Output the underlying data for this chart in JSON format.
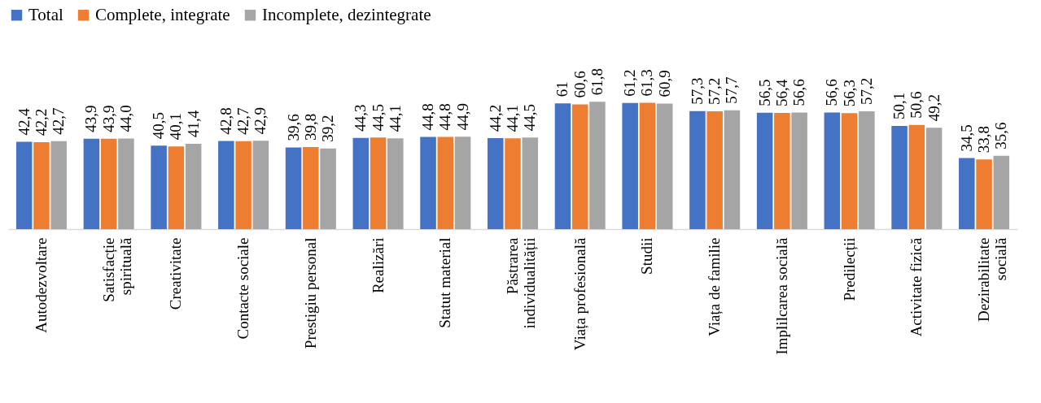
{
  "chart_data": {
    "type": "bar",
    "categories": [
      "Autodezvoltare",
      "Satisfacție\nspirituală",
      "Creativitate",
      "Contacte sociale",
      "Prestigiu personal",
      "Realizări",
      "Statut material",
      "Păstrarea\nindividualității",
      "Viața profesională",
      "Studii",
      "Viața de familie",
      "Implilcarea socială",
      "Predilecții",
      "Activitate fizică",
      "Dezirabilitate\nsocială"
    ],
    "series": [
      {
        "name": "Total",
        "color": "#4472c4",
        "values": [
          42.4,
          43.9,
          40.5,
          42.8,
          39.6,
          44.3,
          44.8,
          44.2,
          61,
          61.2,
          57.3,
          56.5,
          56.6,
          50.1,
          34.5
        ],
        "value_labels": [
          "42,4",
          "43,9",
          "40,5",
          "42,8",
          "39,6",
          "44,3",
          "44,8",
          "44,2",
          "61",
          "61,2",
          "57,3",
          "56,5",
          "56,6",
          "50,1",
          "34,5"
        ]
      },
      {
        "name": "Complete, integrate",
        "color": "#ed7d31",
        "values": [
          42.2,
          43.9,
          40.1,
          42.7,
          39.8,
          44.5,
          44.8,
          44.1,
          60.6,
          61.3,
          57.2,
          56.4,
          56.3,
          50.6,
          33.8
        ],
        "value_labels": [
          "42,2",
          "43,9",
          "40,1",
          "42,7",
          "39,8",
          "44,5",
          "44,8",
          "44,1",
          "60,6",
          "61,3",
          "57,2",
          "56,4",
          "56,3",
          "50,6",
          "33,8"
        ]
      },
      {
        "name": "Incomplete, dezintegrate",
        "color": "#a5a5a5",
        "values": [
          42.7,
          44.0,
          41.4,
          42.9,
          39.2,
          44.1,
          44.9,
          44.5,
          61.8,
          60.9,
          57.7,
          56.6,
          57.2,
          49.2,
          35.6
        ],
        "value_labels": [
          "42,7",
          "44,0",
          "41,4",
          "42,9",
          "39,2",
          "44,1",
          "44,9",
          "44,5",
          "61,8",
          "60,9",
          "57,7",
          "56,6",
          "57,2",
          "49,2",
          "35,6"
        ]
      }
    ],
    "legend": "top"
  }
}
